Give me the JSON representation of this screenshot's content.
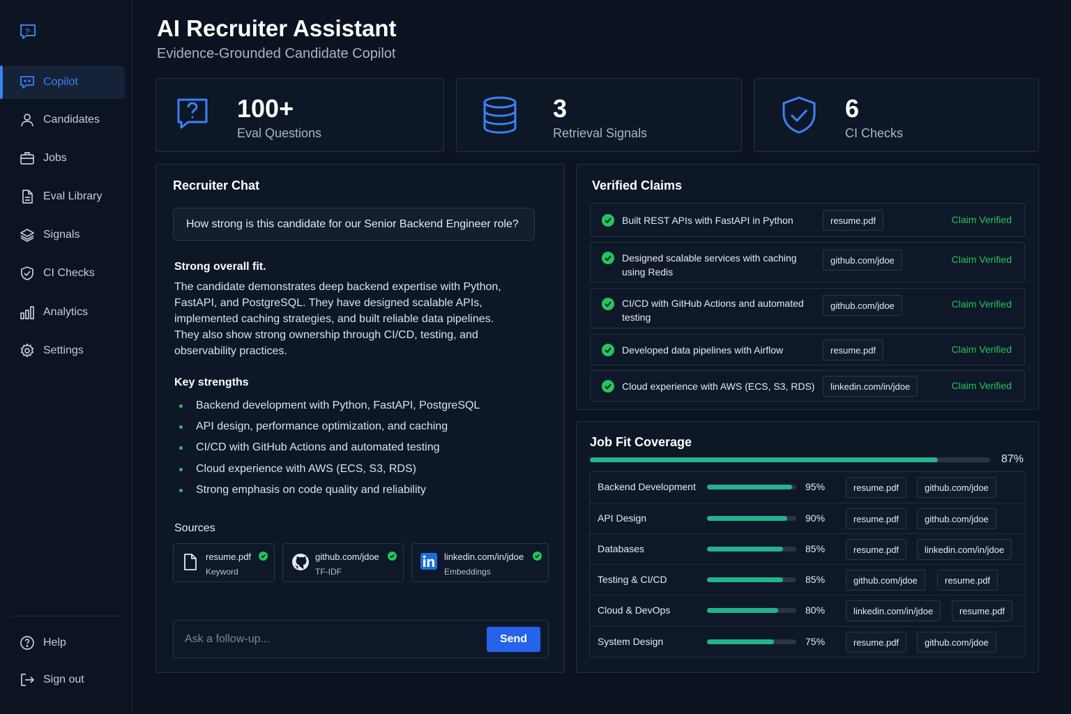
{
  "sidebar": {
    "items": [
      {
        "label": "Copilot",
        "icon": "chat-icon",
        "active": true
      },
      {
        "label": "Candidates",
        "icon": "user-icon"
      },
      {
        "label": "Jobs",
        "icon": "briefcase-icon"
      },
      {
        "label": "Eval Library",
        "icon": "document-icon"
      },
      {
        "label": "Signals",
        "icon": "layers-icon"
      },
      {
        "label": "CI Checks",
        "icon": "shield-check-icon"
      },
      {
        "label": "Analytics",
        "icon": "bar-chart-icon"
      },
      {
        "label": "Settings",
        "icon": "gear-icon"
      }
    ],
    "footer": [
      {
        "label": "Help",
        "icon": "help-icon"
      },
      {
        "label": "Sign out",
        "icon": "sign-out-icon"
      }
    ]
  },
  "header": {
    "title": "AI Recruiter Assistant",
    "subtitle": "Evidence-Grounded Candidate Copilot"
  },
  "stats": [
    {
      "value": "100+",
      "label": "Eval Questions",
      "icon": "question-chat-icon"
    },
    {
      "value": "3",
      "label": "Retrieval Signals",
      "icon": "database-icon"
    },
    {
      "value": "6",
      "label": "CI Checks",
      "icon": "shield-check-icon"
    }
  ],
  "chat": {
    "title": "Recruiter Chat",
    "question": "How strong is this candidate for our Senior Backend Engineer role?",
    "answer_heading": "Strong overall fit.",
    "answer_body": "The candidate demonstrates deep backend expertise with Python, FastAPI, and PostgreSQL. They have designed scalable APIs, implemented caching strategies, and built reliable data pipelines. They also show strong ownership through CI/CD, testing, and observability practices.",
    "strengths_heading": "Key strengths",
    "strengths": [
      "Backend development with Python, FastAPI, PostgreSQL",
      "API design, performance optimization, and caching",
      "CI/CD with GitHub Actions and automated testing",
      "Cloud experience with AWS (ECS, S3, RDS)",
      "Strong emphasis on code quality and reliability"
    ],
    "sources_heading": "Sources",
    "sources": [
      {
        "name": "resume.pdf",
        "type": "Keyword",
        "icon": "file-icon"
      },
      {
        "name": "github.com/jdoe",
        "type": "TF-IDF",
        "icon": "github-icon"
      },
      {
        "name": "linkedin.com/in/jdoe",
        "type": "Embeddings",
        "icon": "linkedin-icon"
      }
    ],
    "input_placeholder": "Ask a follow-up...",
    "send_label": "Send"
  },
  "claims": {
    "title": "Verified Claims",
    "items": [
      {
        "text": "Built REST APIs with FastAPI in Python",
        "source": "resume.pdf",
        "status": "Claim Verified"
      },
      {
        "text": "Designed scalable services with caching using Redis",
        "source": "github.com/jdoe",
        "status": "Claim Verified"
      },
      {
        "text": "CI/CD with GitHub Actions and automated testing",
        "source": "github.com/jdoe",
        "status": "Claim Verified"
      },
      {
        "text": "Developed data pipelines with Airflow",
        "source": "resume.pdf",
        "status": "Claim Verified"
      },
      {
        "text": "Cloud experience with AWS (ECS, S3, RDS)",
        "source": "linkedin.com/in/jdoe",
        "status": "Claim Verified"
      }
    ]
  },
  "job_fit": {
    "title": "Job Fit Coverage",
    "overall_pct": "87%",
    "overall_value": 87,
    "rows": [
      {
        "name": "Backend Development",
        "pct": "95%",
        "value": 95,
        "sources": [
          "resume.pdf",
          "github.com/jdoe"
        ]
      },
      {
        "name": "API Design",
        "pct": "90%",
        "value": 90,
        "sources": [
          "resume.pdf",
          "github.com/jdoe"
        ]
      },
      {
        "name": "Databases",
        "pct": "85%",
        "value": 85,
        "sources": [
          "resume.pdf",
          "linkedin.com/in/jdoe"
        ]
      },
      {
        "name": "Testing & CI/CD",
        "pct": "85%",
        "value": 85,
        "sources": [
          "github.com/jdoe",
          "resume.pdf"
        ]
      },
      {
        "name": "Cloud & DevOps",
        "pct": "80%",
        "value": 80,
        "sources": [
          "linkedin.com/in/jdoe",
          "resume.pdf"
        ]
      },
      {
        "name": "System Design",
        "pct": "75%",
        "value": 75,
        "sources": [
          "resume.pdf",
          "github.com/jdoe"
        ]
      }
    ]
  },
  "colors": {
    "accent": "#3b82f6",
    "success": "#22c55e",
    "progress": "#22b38b",
    "background": "#0b1320"
  }
}
